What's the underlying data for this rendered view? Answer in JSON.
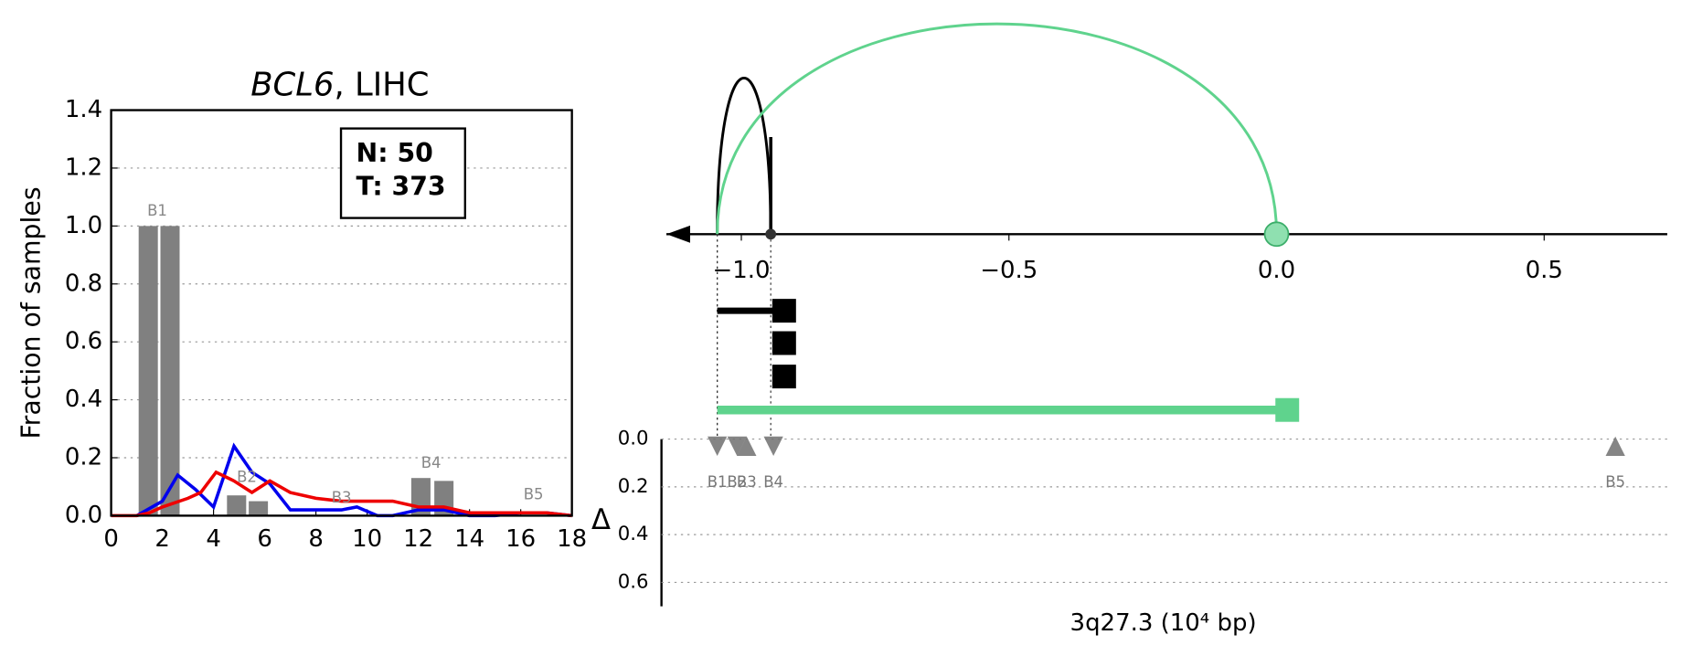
{
  "chart_data": [
    {
      "type": "bar",
      "title": [
        "BCL6",
        ", LIHC"
      ],
      "ylabel": "Fraction of samples",
      "xlim": [
        0,
        18
      ],
      "ylim": [
        0,
        1.4
      ],
      "xticks": [
        0,
        2,
        4,
        6,
        8,
        10,
        12,
        14,
        16,
        18
      ],
      "yticks": [
        {
          "value": 0,
          "label": "0.0"
        },
        0.2,
        0.4,
        0.6,
        0.8,
        {
          "value": 1,
          "label": "1.0"
        },
        1.2,
        1.4
      ],
      "grid": true,
      "color": "#808080",
      "x": [
        1.45,
        2.3,
        4.9,
        5.75,
        12.1,
        13.0
      ],
      "values": [
        1.0,
        1.0,
        0.07,
        0.05,
        0.13,
        0.12
      ],
      "series": [
        {
          "color": "#0000ee",
          "x": [
            1.0,
            2.0,
            2.6,
            3.3,
            4.0,
            4.8,
            5.5,
            6.2,
            7.0,
            8.0,
            9.0,
            9.6,
            10.4,
            11.0,
            12.0,
            13.0,
            14.0,
            15.0,
            16.0,
            17.0,
            18.0
          ],
          "values": [
            0.0,
            0.05,
            0.14,
            0.09,
            0.03,
            0.24,
            0.15,
            0.11,
            0.02,
            0.02,
            0.02,
            0.03,
            0.0,
            0.0,
            0.02,
            0.02,
            0.0,
            0.0,
            0.01,
            0.01,
            0.0
          ]
        },
        {
          "color": "#ee0000",
          "x": [
            0.0,
            1.0,
            1.5,
            2.0,
            3.0,
            3.5,
            4.1,
            4.8,
            5.5,
            6.2,
            7.0,
            8.0,
            9.0,
            10.0,
            11.0,
            12.0,
            13.0,
            14.0,
            15.0,
            16.0,
            17.0,
            18.0
          ],
          "values": [
            0.0,
            0.0,
            0.01,
            0.03,
            0.06,
            0.08,
            0.15,
            0.12,
            0.08,
            0.12,
            0.08,
            0.06,
            0.05,
            0.05,
            0.05,
            0.03,
            0.03,
            0.01,
            0.01,
            0.01,
            0.01,
            0.0
          ]
        }
      ],
      "annotations": [
        {
          "text": "B1",
          "x": 1.8,
          "y": 1.05
        },
        {
          "text": "B2",
          "x": 5.3,
          "y": 0.13
        },
        {
          "text": "B3",
          "x": 9.0,
          "y": 0.06
        },
        {
          "text": "B4",
          "x": 12.5,
          "y": 0.18
        },
        {
          "text": "B5",
          "x": 16.5,
          "y": 0.07
        }
      ],
      "box": [
        "N: 50",
        "T: 373"
      ]
    },
    {
      "type": "arc",
      "xlim": [
        -1.14,
        0.73
      ],
      "xticks": [
        {
          "value": -1,
          "label": "−1.0"
        },
        {
          "value": -0.5,
          "label": "−0.5"
        },
        {
          "value": 0,
          "label": "0.0"
        },
        0.5
      ],
      "arcs": [
        {
          "start": -1.045,
          "end": -0.945,
          "color": "#000000"
        },
        {
          "start": -1.045,
          "end": 0,
          "color": "#5fd38d"
        }
      ],
      "segments": [
        {
          "start": -1.045,
          "end": -0.92,
          "color": "#000000"
        },
        {
          "start": -0.92,
          "end": -0.92,
          "color": "#000000"
        },
        {
          "start": -0.92,
          "end": -0.92,
          "color": "#000000"
        },
        {
          "start": -1.045,
          "end": 0.02,
          "color": "#5fd38d"
        }
      ]
    },
    {
      "type": "scatter",
      "xlabel": "3q27.3 (10⁴ bp)",
      "ylabel": "Δ",
      "ylim": [
        0,
        0.7
      ],
      "yticks": [
        {
          "value": 0,
          "label": "0.0"
        },
        0.2,
        0.4,
        0.6
      ],
      "grid": true,
      "color": "#707070",
      "points": [
        {
          "name": "B1",
          "x": -1.045,
          "y": 0.03,
          "marker": "down"
        },
        {
          "name": "B2",
          "x": -1.008,
          "y": 0.03,
          "marker": "down"
        },
        {
          "name": "B3",
          "x": -0.99,
          "y": 0.03,
          "marker": "up"
        },
        {
          "name": "B4",
          "x": -0.94,
          "y": 0.03,
          "marker": "down"
        },
        {
          "name": "B5",
          "x": 0.633,
          "y": 0.03,
          "marker": "up"
        }
      ]
    }
  ]
}
